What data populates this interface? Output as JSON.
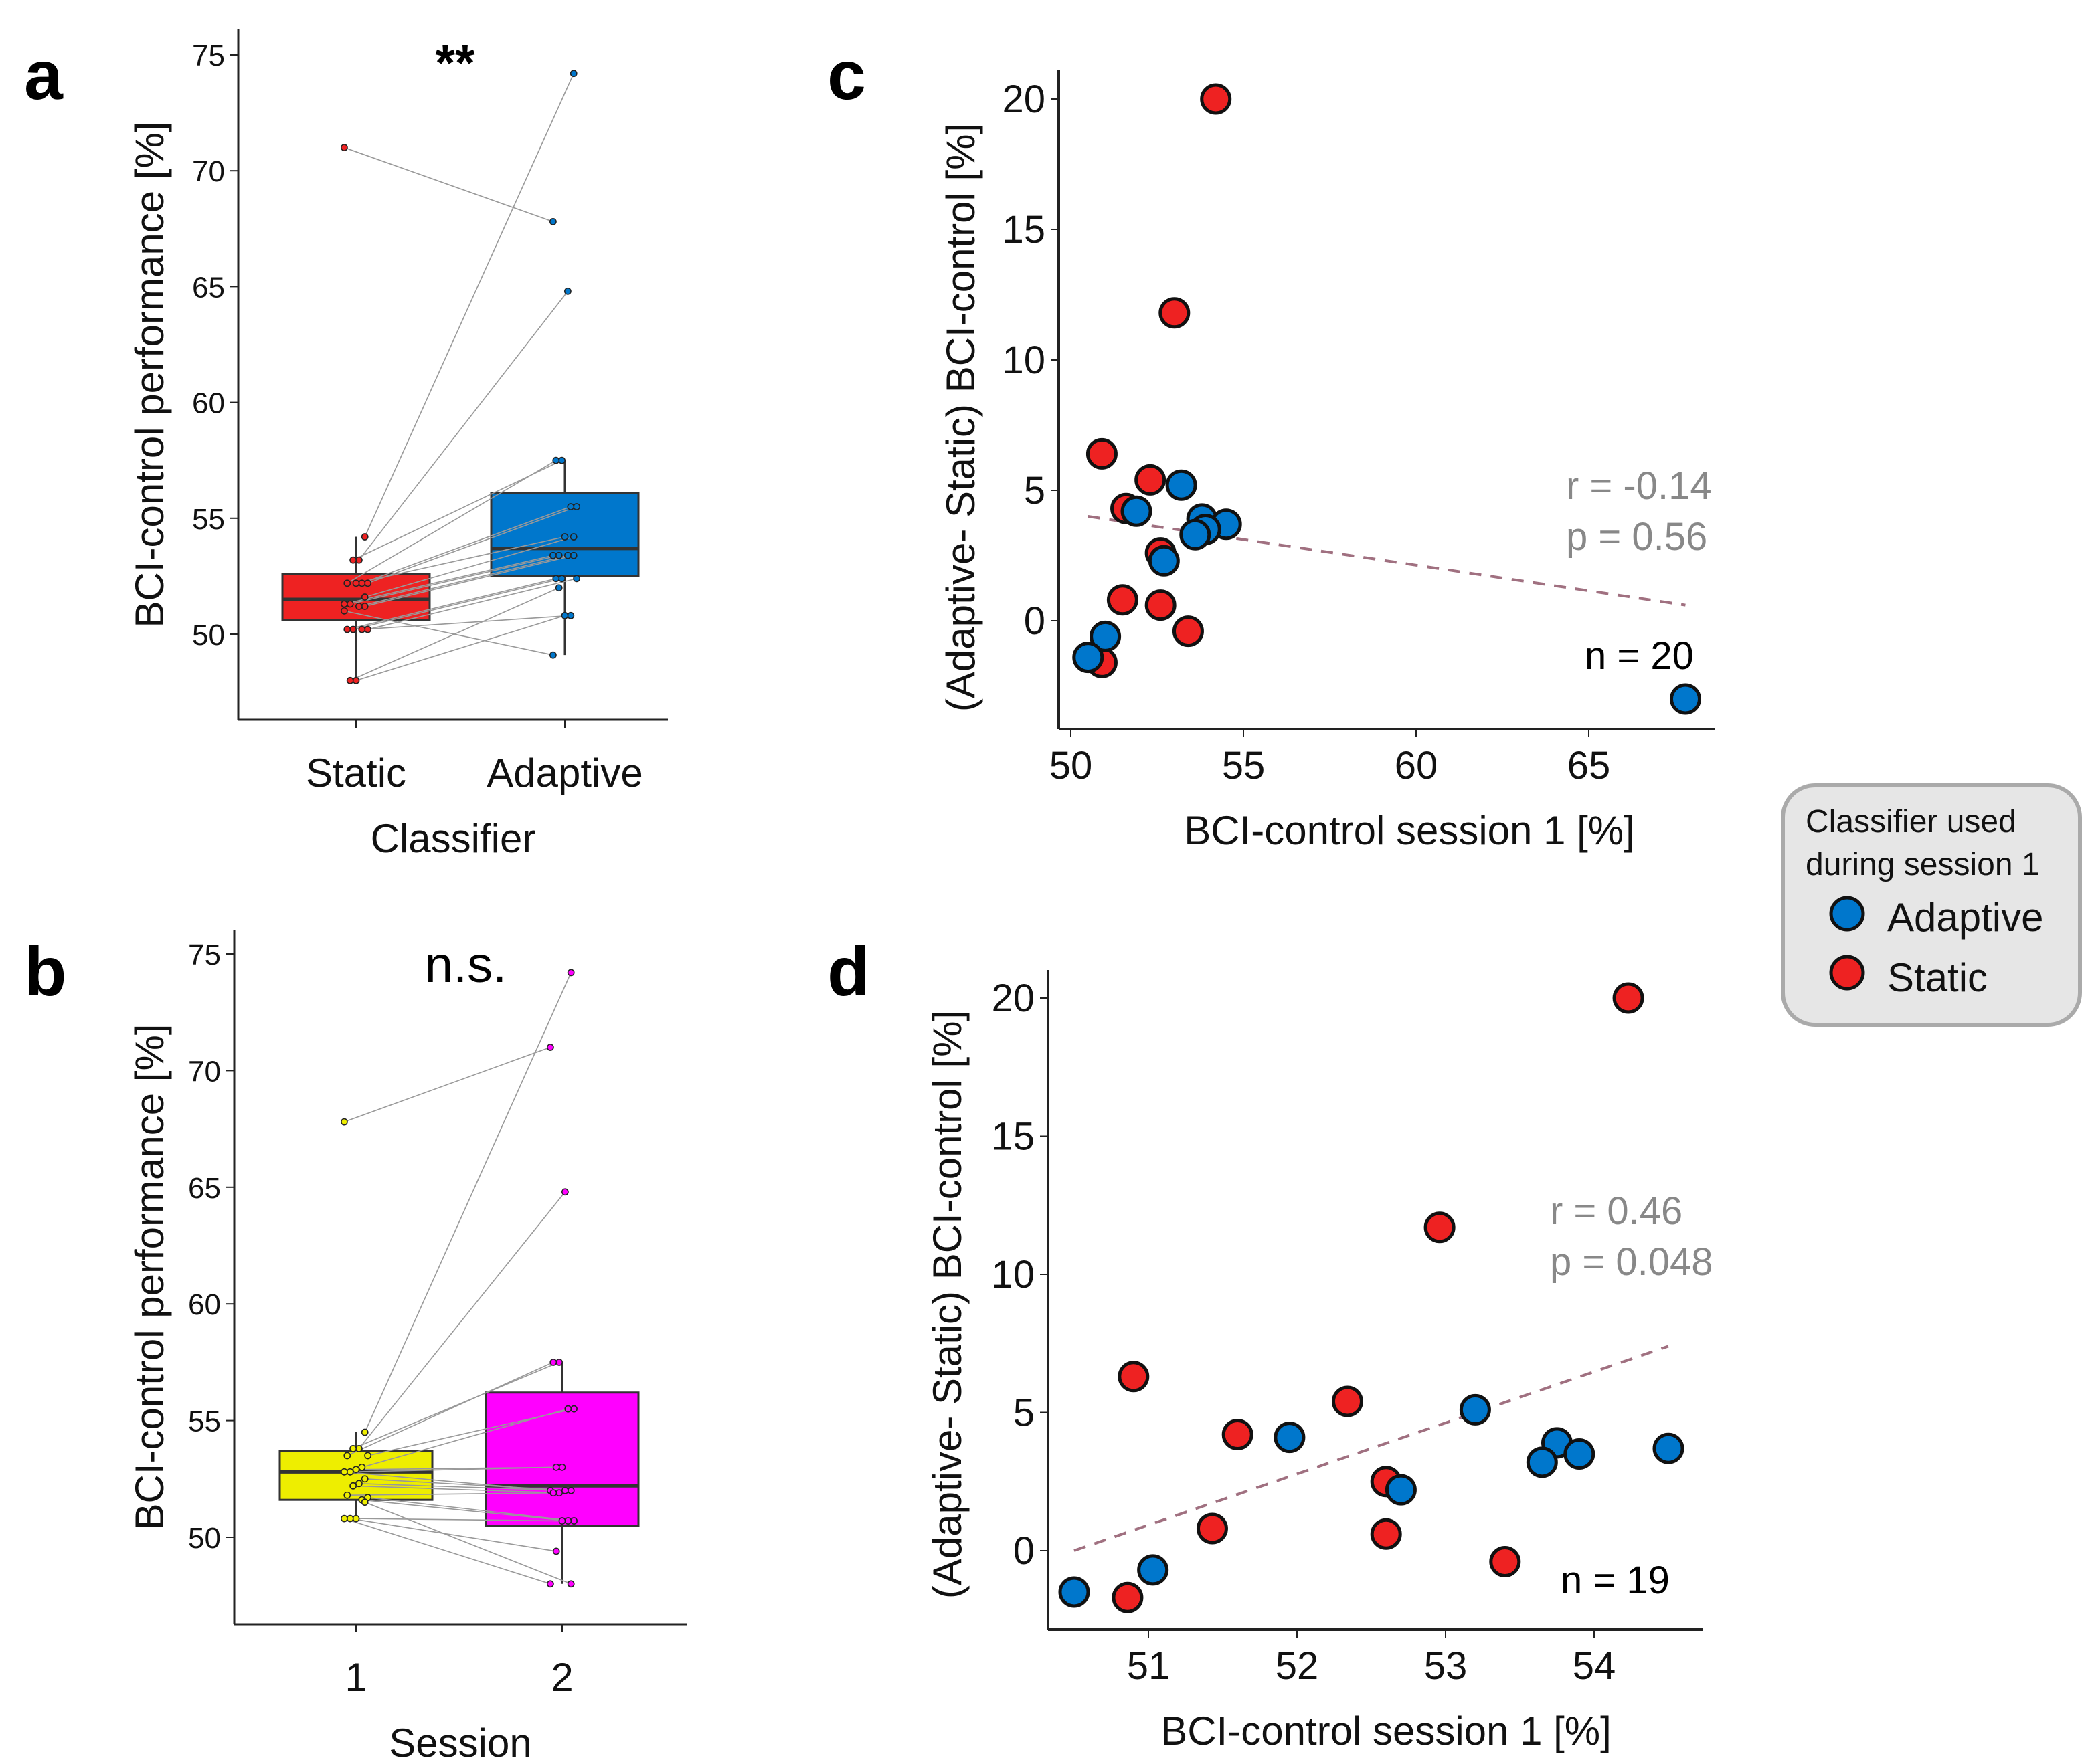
{
  "panels": {
    "a": "a",
    "b": "b",
    "c": "c",
    "d": "d"
  },
  "colors": {
    "static": "#ee2222",
    "adaptive": "#0077cc",
    "session1": "#eeee00",
    "session2": "#ff00ff",
    "regression": "#a07080"
  },
  "legend": {
    "title_line1": "Classifier used",
    "title_line2": "during session 1",
    "items": [
      "Adaptive",
      "Static"
    ]
  },
  "chart_data": [
    {
      "id": "a",
      "type": "box-paired",
      "ylabel": "BCI-control performance [%]",
      "xlabel": "Classifier",
      "categories": [
        "Static",
        "Adaptive"
      ],
      "significance": "**",
      "yticks": [
        50,
        55,
        60,
        65,
        70,
        75
      ],
      "ylim": [
        46.5,
        76.5
      ],
      "boxes": [
        {
          "q1": 50.6,
          "median": 51.5,
          "q3": 52.6,
          "whisker_low": 48.0,
          "whisker_high": 54.2
        },
        {
          "q1": 52.5,
          "median": 53.7,
          "q3": 56.1,
          "whisker_low": 49.1,
          "whisker_high": 57.5
        }
      ],
      "pairs": [
        [
          71.0,
          67.8
        ],
        [
          54.2,
          74.2
        ],
        [
          53.2,
          64.8
        ],
        [
          53.2,
          57.5
        ],
        [
          52.2,
          57.5
        ],
        [
          52.2,
          55.5
        ],
        [
          52.2,
          55.5
        ],
        [
          52.2,
          54.2
        ],
        [
          51.3,
          53.4
        ],
        [
          51.3,
          53.4
        ],
        [
          51.2,
          53.4
        ],
        [
          51.2,
          53.4
        ],
        [
          50.2,
          52.4
        ],
        [
          50.2,
          52.4
        ],
        [
          50.2,
          52.4
        ],
        [
          50.2,
          50.8
        ],
        [
          48.0,
          50.8
        ],
        [
          48.0,
          52.0
        ],
        [
          51.0,
          49.1
        ],
        [
          51.6,
          54.2
        ]
      ]
    },
    {
      "id": "b",
      "type": "box-paired",
      "ylabel": "BCI-control performance [%]",
      "xlabel": "Session",
      "categories": [
        "1",
        "2"
      ],
      "significance": "n.s.",
      "yticks": [
        50,
        55,
        60,
        65,
        70,
        75
      ],
      "ylim": [
        46.3,
        76.1
      ],
      "boxes": [
        {
          "q1": 51.6,
          "median": 52.8,
          "q3": 53.7,
          "whisker_low": 50.8,
          "whisker_high": 54.5
        },
        {
          "q1": 50.5,
          "median": 52.2,
          "q3": 56.2,
          "whisker_low": 48.0,
          "whisker_high": 57.5
        }
      ],
      "pairs": [
        [
          67.8,
          71.0
        ],
        [
          54.5,
          74.2
        ],
        [
          53.8,
          64.8
        ],
        [
          53.8,
          57.5
        ],
        [
          53.5,
          57.5
        ],
        [
          53.5,
          55.5
        ],
        [
          53.0,
          55.5
        ],
        [
          52.9,
          53.0
        ],
        [
          52.8,
          53.0
        ],
        [
          52.8,
          52.0
        ],
        [
          52.5,
          52.0
        ],
        [
          52.3,
          52.0
        ],
        [
          52.2,
          51.9
        ],
        [
          51.8,
          51.9
        ],
        [
          51.7,
          50.7
        ],
        [
          51.6,
          50.7
        ],
        [
          50.8,
          50.7
        ],
        [
          50.8,
          49.4
        ],
        [
          50.8,
          48.0
        ],
        [
          51.5,
          48.0
        ]
      ]
    },
    {
      "id": "c",
      "type": "scatter",
      "xlabel": "BCI-control session 1 [%]",
      "ylabel": "(Adaptive- Static) BCI-control [%]",
      "xticks": [
        50,
        55,
        60,
        65
      ],
      "yticks": [
        0,
        5,
        10,
        15,
        20
      ],
      "xlim": [
        49.6,
        69.0
      ],
      "ylim": [
        -4.2,
        21.0
      ],
      "r_text": "r = -0.14",
      "p_text": "p = 0.56",
      "n_text": "n = 20",
      "regression": [
        [
          50.5,
          4.0
        ],
        [
          67.8,
          0.6
        ]
      ],
      "series": [
        {
          "name": "Static",
          "points": [
            [
              54.2,
              20.0
            ],
            [
              53.0,
              11.8
            ],
            [
              50.9,
              6.4
            ],
            [
              52.3,
              5.4
            ],
            [
              51.6,
              4.3
            ],
            [
              52.6,
              2.6
            ],
            [
              51.5,
              0.8
            ],
            [
              52.6,
              0.6
            ],
            [
              53.4,
              -0.4
            ],
            [
              50.9,
              -1.6
            ]
          ]
        },
        {
          "name": "Adaptive",
          "points": [
            [
              53.2,
              5.2
            ],
            [
              51.9,
              4.2
            ],
            [
              53.8,
              3.9
            ],
            [
              54.5,
              3.7
            ],
            [
              53.9,
              3.5
            ],
            [
              53.6,
              3.3
            ],
            [
              52.7,
              2.3
            ],
            [
              51.0,
              -0.6
            ],
            [
              50.5,
              -1.4
            ],
            [
              67.8,
              -3.0
            ]
          ]
        }
      ]
    },
    {
      "id": "d",
      "type": "scatter",
      "xlabel": "BCI-control session 1 [%]",
      "ylabel": "(Adaptive- Static) BCI-control [%]",
      "xticks": [
        51,
        52,
        53,
        54
      ],
      "yticks": [
        0,
        5,
        10,
        15,
        20
      ],
      "xlim": [
        50.22,
        54.63
      ],
      "ylim": [
        -2.85,
        21.0
      ],
      "r_text": "r = 0.46",
      "p_text": "p = 0.048",
      "n_text": "n = 19",
      "regression": [
        [
          50.5,
          0.0
        ],
        [
          54.5,
          7.4
        ]
      ],
      "series": [
        {
          "name": "Static",
          "points": [
            [
              54.23,
              20.0
            ],
            [
              52.96,
              11.7
            ],
            [
              50.9,
              6.3
            ],
            [
              52.34,
              5.4
            ],
            [
              51.6,
              4.2
            ],
            [
              52.6,
              2.5
            ],
            [
              51.43,
              0.8
            ],
            [
              52.6,
              0.6
            ],
            [
              53.4,
              -0.4
            ],
            [
              50.86,
              -1.7
            ]
          ]
        },
        {
          "name": "Adaptive",
          "points": [
            [
              53.2,
              5.1
            ],
            [
              51.95,
              4.1
            ],
            [
              53.75,
              3.9
            ],
            [
              53.9,
              3.5
            ],
            [
              54.5,
              3.7
            ],
            [
              53.65,
              3.2
            ],
            [
              52.7,
              2.2
            ],
            [
              51.03,
              -0.7
            ],
            [
              50.5,
              -1.5
            ]
          ]
        }
      ]
    }
  ]
}
